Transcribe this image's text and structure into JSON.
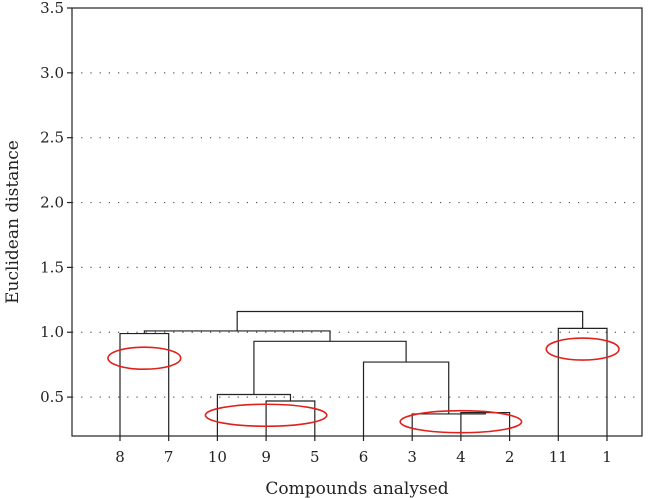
{
  "chart_data": {
    "type": "dendrogram",
    "title": "",
    "xlabel": "Compounds analysed",
    "ylabel": "Euclidean distance",
    "ylim": [
      0.2,
      3.5
    ],
    "yticks": [
      "0.5",
      "1.0",
      "1.5",
      "2.0",
      "2.5",
      "3.0",
      "3.5"
    ],
    "grid": "horizontal-dotted",
    "leaves": [
      "8",
      "7",
      "10",
      "9",
      "5",
      "6",
      "3",
      "4",
      "2",
      "11",
      "1"
    ],
    "merges": [
      {
        "left": "8",
        "right": "7",
        "height": 0.99
      },
      {
        "left": "9",
        "right": "5",
        "height": 0.47
      },
      {
        "left": "10",
        "right": "9,5",
        "height": 0.52
      },
      {
        "left": "4",
        "right": "2",
        "height": 0.38
      },
      {
        "left": "3",
        "right": "4,2",
        "height": 0.37
      },
      {
        "left": "6",
        "right": "3,4,2",
        "height": 0.77
      },
      {
        "left": "10,9,5",
        "right": "6,3,4,2",
        "height": 0.93
      },
      {
        "left": "8,7",
        "right": "10,9,5,6,3,4,2",
        "height": 1.01
      },
      {
        "left": "11",
        "right": "1",
        "height": 1.03
      },
      {
        "left": "8,7,10,9,5,6,3,4,2",
        "right": "11,1",
        "height": 1.16
      }
    ],
    "annotations": [
      {
        "shape": "ellipse",
        "color": "#e0201b",
        "leaves": [
          "8",
          "7"
        ],
        "y": 0.8
      },
      {
        "shape": "ellipse",
        "color": "#e0201b",
        "leaves": [
          "10",
          "9",
          "5"
        ],
        "y": 0.36
      },
      {
        "shape": "ellipse",
        "color": "#e0201b",
        "leaves": [
          "3",
          "4",
          "2"
        ],
        "y": 0.31
      },
      {
        "shape": "ellipse",
        "color": "#e0201b",
        "leaves": [
          "11",
          "1"
        ],
        "y": 0.87
      }
    ]
  }
}
